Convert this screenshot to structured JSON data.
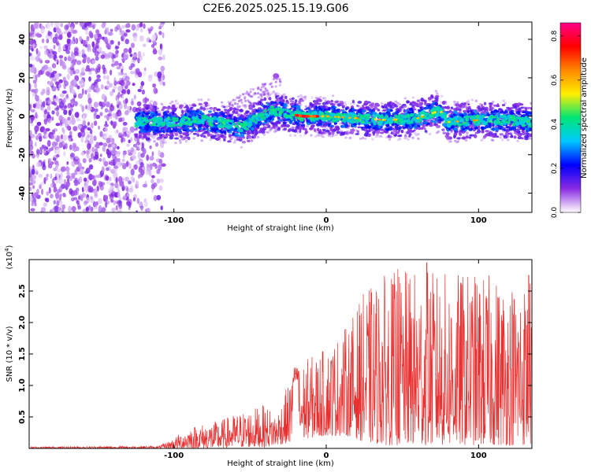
{
  "title": "C2E6.2025.025.15.19.G06",
  "chart_data": [
    {
      "type": "heatmap",
      "xlabel": "Height of straight line (km)",
      "ylabel": "Frequency (Hz)",
      "xlim": [
        -195,
        135
      ],
      "ylim": [
        -50,
        49
      ],
      "xticks": [
        -100,
        0,
        100
      ],
      "xtick_labels": [
        "-100",
        "0",
        "100"
      ],
      "yticks": [
        -40,
        -20,
        0,
        20,
        40
      ],
      "ytick_labels": [
        "-40",
        "-20",
        "0",
        "20",
        "40"
      ],
      "colorbar": {
        "label": "Normalized spectral amplitude",
        "range": [
          0,
          0.86
        ],
        "ticks": [
          0.0,
          0.2,
          0.4,
          0.6,
          0.8
        ],
        "tick_labels": [
          "0.0",
          "0.2",
          "0.4",
          "0.6",
          "0.8"
        ],
        "colors": [
          "#ffffff",
          "#8a2be2",
          "#0000ff",
          "#00c8ff",
          "#00e676",
          "#ffee00",
          "#ff8800",
          "#ff0000",
          "#ff0088"
        ]
      },
      "noise_region_x": [
        -195,
        -112
      ],
      "signal_track": [
        {
          "x": -125,
          "y": -3
        },
        {
          "x": -100,
          "y": -3
        },
        {
          "x": -80,
          "y": -2
        },
        {
          "x": -65,
          "y": -4
        },
        {
          "x": -55,
          "y": -6
        },
        {
          "x": -45,
          "y": -1
        },
        {
          "x": -35,
          "y": 3
        },
        {
          "x": -25,
          "y": 1
        },
        {
          "x": -15,
          "y": 0
        },
        {
          "x": 0,
          "y": 0
        },
        {
          "x": 20,
          "y": -1
        },
        {
          "x": 40,
          "y": -2
        },
        {
          "x": 60,
          "y": -1
        },
        {
          "x": 75,
          "y": 3
        },
        {
          "x": 80,
          "y": -3
        },
        {
          "x": 100,
          "y": -2
        },
        {
          "x": 120,
          "y": -2
        },
        {
          "x": 135,
          "y": -3
        }
      ],
      "peak_x": [
        -20,
        -5
      ]
    },
    {
      "type": "line",
      "xlabel": "Height of straight line (km)",
      "ylabel": "SNR (10 * v/v)",
      "y_multiplier": "(x10^4)",
      "xlim": [
        -195,
        135
      ],
      "ylim": [
        0,
        3.0
      ],
      "xticks": [
        -100,
        0,
        100
      ],
      "xtick_labels": [
        "-100",
        "0",
        "100"
      ],
      "yticks": [
        0.5,
        1.0,
        1.5,
        2.0,
        2.5
      ],
      "ytick_labels": [
        "0.5",
        "1.0",
        "1.5",
        "2.0",
        "2.5"
      ],
      "color": "#e83030",
      "envelope": [
        {
          "x": -195,
          "base": 0.0,
          "peak": 0.03
        },
        {
          "x": -110,
          "base": 0.0,
          "peak": 0.04
        },
        {
          "x": -101,
          "base": 0.0,
          "peak": 0.15
        },
        {
          "x": -90,
          "base": 0.0,
          "peak": 0.35
        },
        {
          "x": -70,
          "base": 0.0,
          "peak": 0.45
        },
        {
          "x": -60,
          "base": 0.02,
          "peak": 0.55
        },
        {
          "x": -40,
          "base": 0.02,
          "peak": 0.7
        },
        {
          "x": -33,
          "base": 0.05,
          "peak": 0.55
        },
        {
          "x": -22,
          "base": 0.1,
          "peak": 1.2
        },
        {
          "x": -15,
          "base": 0.15,
          "peak": 1.4
        },
        {
          "x": 0,
          "base": 0.2,
          "peak": 1.6
        },
        {
          "x": 15,
          "base": 0.2,
          "peak": 2.0
        },
        {
          "x": 25,
          "base": 0.1,
          "peak": 2.5
        },
        {
          "x": 40,
          "base": 0.05,
          "peak": 2.8
        },
        {
          "x": 60,
          "base": 0.05,
          "peak": 2.85
        },
        {
          "x": 80,
          "base": 0.05,
          "peak": 2.8
        },
        {
          "x": 100,
          "base": 0.05,
          "peak": 2.8
        },
        {
          "x": 120,
          "base": 0.05,
          "peak": 2.7
        },
        {
          "x": 135,
          "base": 0.05,
          "peak": 2.75
        }
      ],
      "spike_at": [
        {
          "x": 66,
          "y": 2.95
        },
        {
          "x": 47,
          "y": 2.85
        },
        {
          "x": 133,
          "y": 2.75
        }
      ]
    }
  ]
}
